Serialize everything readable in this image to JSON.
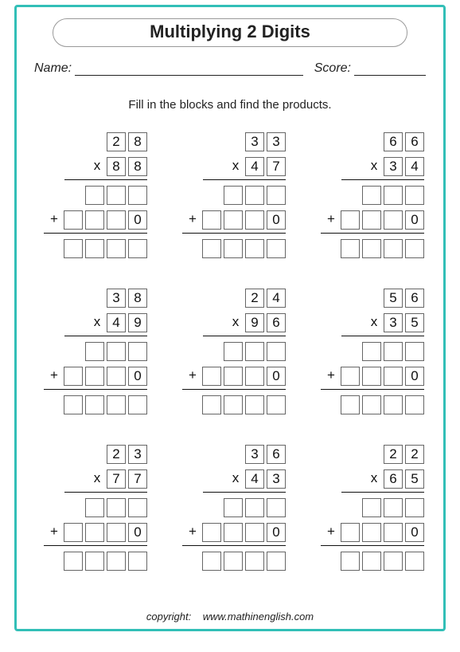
{
  "title": "Multiplying 2 Digits",
  "name_label": "Name:",
  "score_label": "Score:",
  "instruction": "Fill in the blocks and find the products.",
  "problems": [
    {
      "top": [
        "2",
        "8"
      ],
      "bot": [
        "8",
        "8"
      ]
    },
    {
      "top": [
        "3",
        "3"
      ],
      "bot": [
        "4",
        "7"
      ]
    },
    {
      "top": [
        "6",
        "6"
      ],
      "bot": [
        "3",
        "4"
      ]
    },
    {
      "top": [
        "3",
        "8"
      ],
      "bot": [
        "4",
        "9"
      ]
    },
    {
      "top": [
        "2",
        "4"
      ],
      "bot": [
        "9",
        "6"
      ]
    },
    {
      "top": [
        "5",
        "6"
      ],
      "bot": [
        "3",
        "5"
      ]
    },
    {
      "top": [
        "2",
        "3"
      ],
      "bot": [
        "7",
        "7"
      ]
    },
    {
      "top": [
        "3",
        "6"
      ],
      "bot": [
        "4",
        "3"
      ]
    },
    {
      "top": [
        "2",
        "2"
      ],
      "bot": [
        "6",
        "5"
      ]
    }
  ],
  "zero_placeholder": "0",
  "op_times": "x",
  "op_plus": "+",
  "copyright_label": "copyright:",
  "copyright_site": "www.mathinenglish.com",
  "colors": {
    "border": "#32bfb7",
    "box_border": "#666666",
    "text": "#222222",
    "rule": "#111111"
  }
}
